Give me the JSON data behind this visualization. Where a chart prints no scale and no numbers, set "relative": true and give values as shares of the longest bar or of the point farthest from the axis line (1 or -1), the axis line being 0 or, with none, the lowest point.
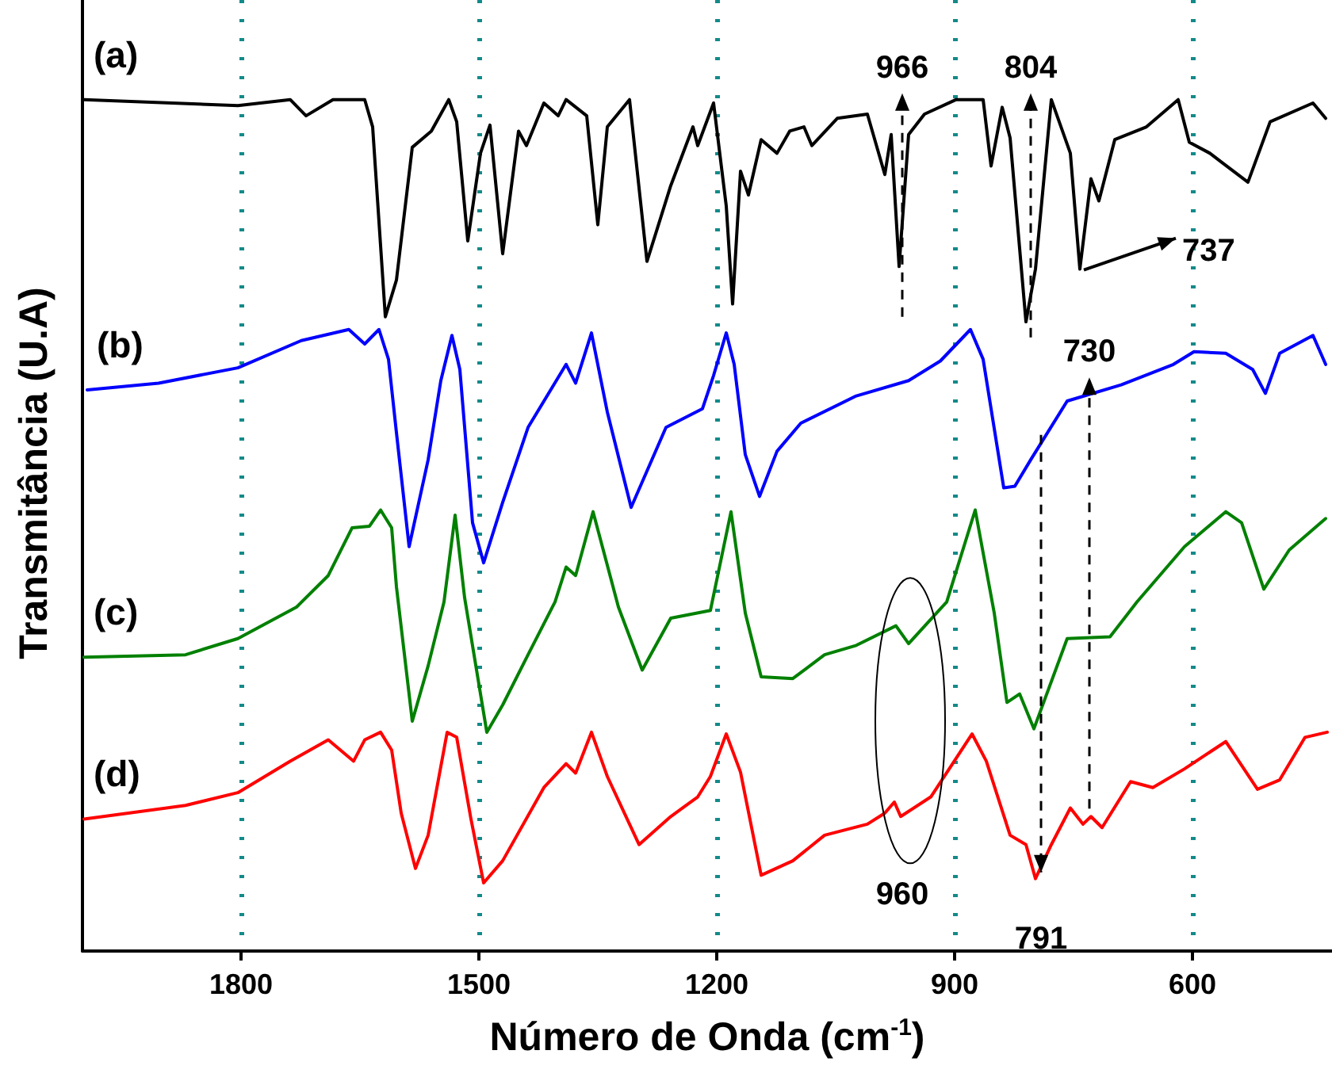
{
  "chart_data": {
    "type": "line",
    "relative": true,
    "xlabel": "Número de Onda (cm$^{-1}$)",
    "ylabel": "Transmitância (U.A)",
    "xlim": [
      2000,
      424
    ],
    "xticks": [
      1800,
      1500,
      1200,
      900,
      600
    ],
    "grid": "x",
    "series": [
      {
        "name": "(a)",
        "color": "#000000",
        "x": [
          1998,
          1804,
          1738,
          1718,
          1684,
          1644,
          1634,
          1618,
          1604,
          1584,
          1560,
          1538,
          1528,
          1514,
          1498,
          1486,
          1470,
          1450,
          1440,
          1418,
          1400,
          1390,
          1364,
          1350,
          1338,
          1310,
          1288,
          1258,
          1230,
          1224,
          1204,
          1188,
          1180,
          1170,
          1160,
          1144,
          1124,
          1108,
          1090,
          1080,
          1048,
          1010,
          988,
          980,
          970,
          958,
          938,
          898,
          864,
          854,
          840,
          830,
          810,
          798,
          778,
          754,
          742,
          728,
          718,
          698,
          658,
          618,
          604,
          578,
          564,
          530,
          502,
          448,
          432
        ],
        "values": [
          1.0,
          0.993,
          1.0,
          0.981,
          1.0,
          1.0,
          0.968,
          0.745,
          0.788,
          0.944,
          0.963,
          1.0,
          0.974,
          0.834,
          0.937,
          0.97,
          0.819,
          0.963,
          0.946,
          0.996,
          0.981,
          1.0,
          0.981,
          0.853,
          0.968,
          1.0,
          0.81,
          0.899,
          0.968,
          0.946,
          0.996,
          0.875,
          0.76,
          0.916,
          0.888,
          0.953,
          0.937,
          0.963,
          0.968,
          0.946,
          0.978,
          0.983,
          0.912,
          0.959,
          0.804,
          0.959,
          0.983,
          1.0,
          1.0,
          0.922,
          0.991,
          0.955,
          0.739,
          0.801,
          1.0,
          0.937,
          0.801,
          0.907,
          0.881,
          0.953,
          0.968,
          1.0,
          0.95,
          0.937,
          0.927,
          0.903,
          0.974,
          0.996,
          0.978
        ]
      },
      {
        "name": "(b)",
        "color": "#0000ff",
        "x": [
          1994,
          1904,
          1804,
          1724,
          1664,
          1644,
          1626,
          1614,
          1604,
          1588,
          1564,
          1548,
          1534,
          1524,
          1508,
          1494,
          1470,
          1438,
          1390,
          1378,
          1358,
          1338,
          1308,
          1264,
          1218,
          1204,
          1188,
          1178,
          1164,
          1146,
          1124,
          1094,
          1024,
          958,
          918,
          880,
          864,
          838,
          824,
          804,
          758,
          690,
          624,
          598,
          558,
          524,
          508,
          490,
          448,
          432
        ],
        "values": [
          0.659,
          0.667,
          0.685,
          0.717,
          0.73,
          0.713,
          0.73,
          0.695,
          0.609,
          0.475,
          0.577,
          0.67,
          0.723,
          0.683,
          0.503,
          0.456,
          0.527,
          0.615,
          0.689,
          0.667,
          0.726,
          0.633,
          0.521,
          0.615,
          0.637,
          0.676,
          0.726,
          0.689,
          0.583,
          0.534,
          0.587,
          0.62,
          0.652,
          0.67,
          0.693,
          0.73,
          0.695,
          0.544,
          0.546,
          0.577,
          0.646,
          0.665,
          0.689,
          0.704,
          0.702,
          0.683,
          0.655,
          0.702,
          0.723,
          0.689
        ]
      },
      {
        "name": "(c)",
        "color": "#008000",
        "x": [
          1998,
          1870,
          1804,
          1730,
          1690,
          1660,
          1638,
          1624,
          1610,
          1604,
          1584,
          1564,
          1544,
          1530,
          1518,
          1490,
          1470,
          1438,
          1404,
          1390,
          1378,
          1356,
          1324,
          1294,
          1258,
          1208,
          1182,
          1164,
          1144,
          1104,
          1064,
          1024,
          974,
          958,
          910,
          874,
          850,
          834,
          818,
          800,
          758,
          704,
          670,
          610,
          558,
          538,
          510,
          478,
          432
        ],
        "values": [
          0.345,
          0.348,
          0.367,
          0.404,
          0.441,
          0.497,
          0.499,
          0.518,
          0.497,
          0.428,
          0.27,
          0.335,
          0.41,
          0.512,
          0.415,
          0.257,
          0.289,
          0.348,
          0.41,
          0.451,
          0.441,
          0.516,
          0.404,
          0.33,
          0.391,
          0.4,
          0.516,
          0.397,
          0.322,
          0.32,
          0.348,
          0.359,
          0.382,
          0.361,
          0.41,
          0.518,
          0.397,
          0.292,
          0.302,
          0.261,
          0.367,
          0.369,
          0.41,
          0.475,
          0.516,
          0.503,
          0.425,
          0.471,
          0.508
        ]
      },
      {
        "name": "(d)",
        "color": "#ff0000",
        "x": [
          1998,
          1870,
          1804,
          1738,
          1690,
          1658,
          1644,
          1624,
          1610,
          1598,
          1580,
          1564,
          1540,
          1528,
          1510,
          1494,
          1470,
          1418,
          1390,
          1378,
          1358,
          1338,
          1298,
          1258,
          1224,
          1208,
          1188,
          1170,
          1144,
          1104,
          1064,
          1010,
          988,
          976,
          968,
          930,
          878,
          860,
          830,
          810,
          798,
          778,
          754,
          738,
          728,
          714,
          678,
          650,
          610,
          558,
          518,
          490,
          458,
          430
        ],
        "values": [
          0.155,
          0.171,
          0.186,
          0.223,
          0.248,
          0.223,
          0.248,
          0.257,
          0.236,
          0.162,
          0.097,
          0.136,
          0.257,
          0.251,
          0.155,
          0.08,
          0.106,
          0.192,
          0.22,
          0.209,
          0.257,
          0.205,
          0.125,
          0.158,
          0.181,
          0.205,
          0.255,
          0.21,
          0.089,
          0.106,
          0.136,
          0.149,
          0.162,
          0.175,
          0.158,
          0.181,
          0.255,
          0.223,
          0.136,
          0.125,
          0.085,
          0.125,
          0.168,
          0.149,
          0.158,
          0.145,
          0.199,
          0.192,
          0.214,
          0.246,
          0.19,
          0.201,
          0.251,
          0.257
        ]
      }
    ],
    "annotations": [
      {
        "text": "966",
        "x": 966,
        "y": 1.0
      },
      {
        "text": "804",
        "x": 804,
        "y": 1.0
      },
      {
        "text": "737",
        "x": 737,
        "y": 0.8
      },
      {
        "text": "730",
        "x": 730,
        "y": 0.655
      },
      {
        "text": "960",
        "x": 960,
        "y": 0.17
      },
      {
        "text": "791",
        "x": 791,
        "y": 0.085
      }
    ]
  }
}
